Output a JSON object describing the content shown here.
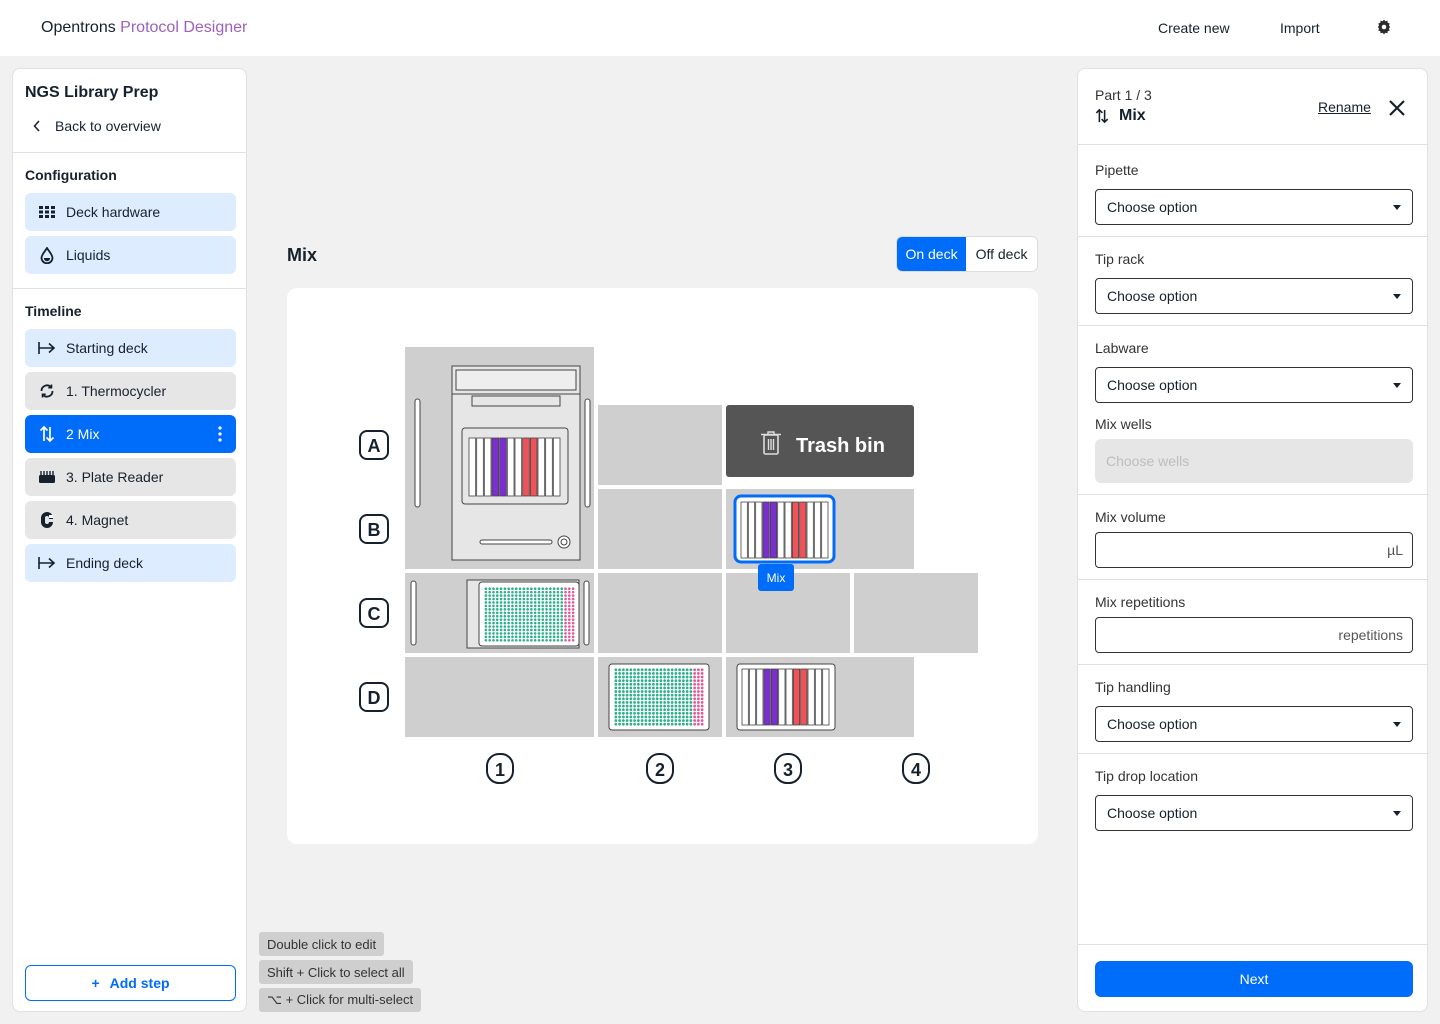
{
  "app": {
    "brand_primary": "Opentrons",
    "brand_accent": "Protocol Designer"
  },
  "topnav": {
    "create_new": "Create new",
    "import": "Import",
    "settings_icon": "gear-icon"
  },
  "sidebar": {
    "protocol_name": "NGS Library Prep",
    "back_label": "Back to overview",
    "configuration_heading": "Configuration",
    "configuration_items": [
      {
        "label": "Deck hardware",
        "icon": "grid-icon"
      },
      {
        "label": "Liquids",
        "icon": "droplet-icon"
      }
    ],
    "timeline_heading": "Timeline",
    "timeline_items": [
      {
        "label": "Starting deck",
        "icon": "arrow-right-bar-icon"
      },
      {
        "label": "1. Thermocycler",
        "icon": "thermocycler-icon"
      },
      {
        "label": "2 Mix",
        "icon": "mix-arrows-icon",
        "active": true
      },
      {
        "label": "3. Plate Reader",
        "icon": "plate-reader-icon"
      },
      {
        "label": "4. Magnet",
        "icon": "magnet-icon"
      },
      {
        "label": "Ending deck",
        "icon": "arrow-right-bar-icon"
      }
    ],
    "add_step_label": "Add step"
  },
  "main": {
    "step_title": "Mix",
    "toggle": {
      "on_deck": "On deck",
      "off_deck": "Off deck",
      "selected": "On deck"
    },
    "deck": {
      "rows": [
        "A",
        "B",
        "C",
        "D"
      ],
      "columns": [
        "1",
        "2",
        "3",
        "4"
      ],
      "trash_label": "Trash bin",
      "selected_tag": "Mix"
    },
    "hints": [
      "Double click to edit",
      "Shift + Click to select all",
      "⌥ + Click for multi-select"
    ]
  },
  "panel": {
    "part": "Part 1 / 3",
    "title": "Mix",
    "rename": "Rename",
    "fields": {
      "pipette": {
        "label": "Pipette",
        "value": "Choose option"
      },
      "tip_rack": {
        "label": "Tip rack",
        "value": "Choose option"
      },
      "labware": {
        "label": "Labware",
        "value": "Choose option"
      },
      "mix_wells": {
        "label": "Mix wells",
        "value": "Choose wells"
      },
      "mix_volume": {
        "label": "Mix volume",
        "unit": "µL"
      },
      "mix_repetitions": {
        "label": "Mix repetitions",
        "unit": "repetitions"
      },
      "tip_handling": {
        "label": "Tip handling",
        "value": "Choose option"
      },
      "tip_drop": {
        "label": "Tip drop location",
        "value": "Choose option"
      }
    },
    "next_label": "Next"
  },
  "colors": {
    "primary": "#006cfa",
    "accent": "#9e5fbd",
    "purple_liquid": "#7b2fd0",
    "red_liquid": "#f0525a",
    "green_wells": "#2fb08a",
    "pink_wells": "#e25a9a"
  }
}
